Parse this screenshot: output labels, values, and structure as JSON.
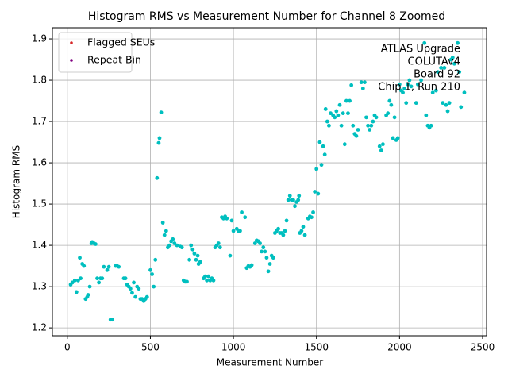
{
  "chart_data": {
    "type": "scatter",
    "title": "Histogram RMS vs Measurement Number for Channel 8 Zoomed",
    "xlabel": "Measurement Number",
    "ylabel": "Histogram RMS",
    "annotations": [
      "ATLAS Upgrade",
      "COLUTAv4",
      "Board 92",
      "Chip 1, Run 210"
    ],
    "legend": [
      {
        "name": "Flagged SEUs",
        "color": "#d62728"
      },
      {
        "name": "Repeat Bin",
        "color": "#800080"
      }
    ],
    "legend_position": "upper left",
    "color": "#00bfbf",
    "grid": true,
    "xlim": [
      -90,
      2524
    ],
    "ylim": [
      1.181,
      1.927
    ],
    "xticks": [
      0,
      500,
      1000,
      1500,
      2000,
      2500
    ],
    "yticks": [
      1.2,
      1.3,
      1.4,
      1.5,
      1.6,
      1.7,
      1.8,
      1.9
    ],
    "x": [
      20,
      30,
      45,
      55,
      65,
      75,
      80,
      90,
      100,
      110,
      120,
      125,
      135,
      145,
      150,
      160,
      170,
      180,
      190,
      200,
      210,
      220,
      240,
      250,
      260,
      270,
      290,
      300,
      310,
      340,
      350,
      360,
      370,
      380,
      390,
      400,
      410,
      420,
      430,
      440,
      450,
      460,
      470,
      480,
      500,
      510,
      520,
      530,
      540,
      550,
      555,
      565,
      575,
      585,
      595,
      605,
      615,
      625,
      635,
      645,
      660,
      680,
      690,
      700,
      710,
      720,
      735,
      745,
      755,
      765,
      775,
      785,
      790,
      800,
      820,
      830,
      840,
      850,
      860,
      870,
      880,
      890,
      900,
      910,
      920,
      930,
      940,
      950,
      960,
      980,
      990,
      1000,
      1020,
      1030,
      1040,
      1050,
      1070,
      1080,
      1090,
      1100,
      1110,
      1130,
      1140,
      1150,
      1160,
      1170,
      1180,
      1190,
      1200,
      1210,
      1220,
      1230,
      1240,
      1250,
      1260,
      1270,
      1280,
      1290,
      1300,
      1310,
      1320,
      1330,
      1340,
      1350,
      1360,
      1370,
      1380,
      1390,
      1395,
      1400,
      1410,
      1420,
      1430,
      1450,
      1460,
      1470,
      1480,
      1490,
      1500,
      1510,
      1520,
      1530,
      1540,
      1550,
      1555,
      1565,
      1575,
      1585,
      1600,
      1610,
      1620,
      1630,
      1640,
      1650,
      1660,
      1670,
      1680,
      1690,
      1700,
      1710,
      1720,
      1730,
      1740,
      1750,
      1770,
      1780,
      1790,
      1800,
      1810,
      1820,
      1830,
      1840,
      1850,
      1860,
      1880,
      1890,
      1900,
      1920,
      1930,
      1940,
      1950,
      1960,
      1970,
      1980,
      1990,
      2000,
      2010,
      2020,
      2030,
      2040,
      2050,
      2060,
      2070,
      2100,
      2110,
      2130,
      2150,
      2160,
      2170,
      2180,
      2190,
      2200,
      2220,
      2230,
      2250,
      2260,
      2270,
      2280,
      2290,
      2300,
      2310,
      2320,
      2330,
      2350,
      2360,
      2370,
      2390
    ],
    "values": [
      1.305,
      1.31,
      1.315,
      1.287,
      1.315,
      1.37,
      1.32,
      1.355,
      1.35,
      1.27,
      1.275,
      1.28,
      1.3,
      1.405,
      1.408,
      1.405,
      1.403,
      1.32,
      1.31,
      1.32,
      1.32,
      1.348,
      1.34,
      1.348,
      1.22,
      1.22,
      1.35,
      1.35,
      1.348,
      1.32,
      1.32,
      1.305,
      1.3,
      1.295,
      1.285,
      1.31,
      1.275,
      1.3,
      1.295,
      1.27,
      1.27,
      1.265,
      1.27,
      1.275,
      1.34,
      1.33,
      1.3,
      1.365,
      1.563,
      1.648,
      1.66,
      1.722,
      1.455,
      1.425,
      1.435,
      1.395,
      1.4,
      1.41,
      1.415,
      1.405,
      1.4,
      1.397,
      1.395,
      1.315,
      1.312,
      1.312,
      1.365,
      1.4,
      1.39,
      1.38,
      1.365,
      1.375,
      1.355,
      1.36,
      1.32,
      1.325,
      1.315,
      1.325,
      1.315,
      1.32,
      1.315,
      1.395,
      1.4,
      1.405,
      1.395,
      1.468,
      1.465,
      1.47,
      1.465,
      1.375,
      1.46,
      1.435,
      1.44,
      1.435,
      1.435,
      1.48,
      1.468,
      1.345,
      1.35,
      1.348,
      1.352,
      1.405,
      1.412,
      1.41,
      1.405,
      1.385,
      1.395,
      1.385,
      1.37,
      1.337,
      1.355,
      1.375,
      1.37,
      1.43,
      1.435,
      1.44,
      1.43,
      1.43,
      1.425,
      1.435,
      1.46,
      1.51,
      1.52,
      1.51,
      1.51,
      1.495,
      1.505,
      1.51,
      1.52,
      1.43,
      1.435,
      1.445,
      1.425,
      1.465,
      1.47,
      1.468,
      1.48,
      1.53,
      1.585,
      1.525,
      1.65,
      1.595,
      1.64,
      1.62,
      1.73,
      1.7,
      1.69,
      1.72,
      1.715,
      1.71,
      1.725,
      1.715,
      1.74,
      1.69,
      1.72,
      1.645,
      1.75,
      1.72,
      1.75,
      1.788,
      1.69,
      1.67,
      1.665,
      1.68,
      1.795,
      1.78,
      1.795,
      1.71,
      1.69,
      1.68,
      1.69,
      1.7,
      1.715,
      1.71,
      1.64,
      1.63,
      1.645,
      1.715,
      1.72,
      1.75,
      1.74,
      1.66,
      1.71,
      1.655,
      1.66,
      1.79,
      1.775,
      1.77,
      1.78,
      1.745,
      1.79,
      1.8,
      1.785,
      1.745,
      1.79,
      1.8,
      1.89,
      1.715,
      1.69,
      1.685,
      1.69,
      1.77,
      1.775,
      1.82,
      1.83,
      1.745,
      1.83,
      1.74,
      1.725,
      1.745,
      1.85,
      1.855,
      1.84,
      1.89,
      1.82,
      1.735,
      1.77
    ]
  }
}
